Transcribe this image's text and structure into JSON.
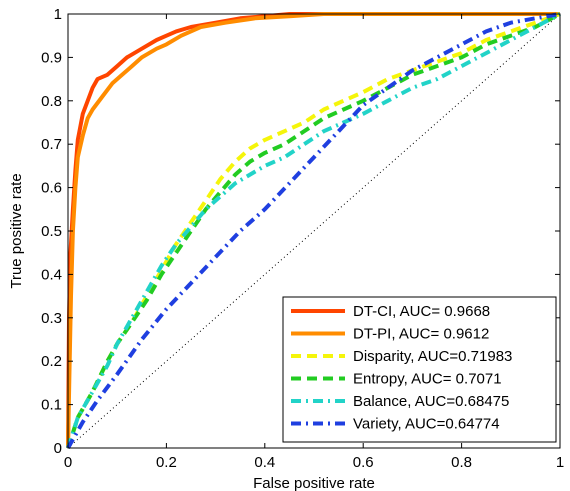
{
  "chart_data": {
    "type": "line",
    "title": "",
    "xlabel": "False positive rate",
    "ylabel": "True positive rate",
    "xlim": [
      0,
      1
    ],
    "ylim": [
      0,
      1
    ],
    "xticks": [
      "0",
      "0.2",
      "0.4",
      "0.6",
      "0.8",
      "1"
    ],
    "yticks": [
      "0",
      "0.1",
      "0.2",
      "0.3",
      "0.4",
      "0.5",
      "0.6",
      "0.7",
      "0.8",
      "0.9",
      "1"
    ],
    "xtick_values": [
      0,
      0.2,
      0.4,
      0.6,
      0.8,
      1
    ],
    "ytick_values": [
      0,
      0.1,
      0.2,
      0.3,
      0.4,
      0.5,
      0.6,
      0.7,
      0.8,
      0.9,
      1
    ],
    "grid": false,
    "legend_position": "bottom-right",
    "diagonal_reference": true,
    "series": [
      {
        "name": "DT-CI, AUC= 0.9668",
        "color": "#ff4500",
        "style": "solid",
        "x": [
          0,
          0.002,
          0.005,
          0.01,
          0.015,
          0.02,
          0.03,
          0.04,
          0.05,
          0.06,
          0.08,
          0.1,
          0.12,
          0.15,
          0.18,
          0.2,
          0.22,
          0.25,
          0.3,
          0.35,
          0.4,
          0.45,
          0.5,
          1
        ],
        "y": [
          0,
          0.3,
          0.45,
          0.55,
          0.64,
          0.71,
          0.77,
          0.8,
          0.83,
          0.85,
          0.86,
          0.88,
          0.9,
          0.92,
          0.94,
          0.95,
          0.96,
          0.97,
          0.98,
          0.99,
          0.995,
          1,
          1,
          1
        ]
      },
      {
        "name": "DT-PI, AUC= 0.9612",
        "color": "#ff8c00",
        "style": "solid",
        "x": [
          0,
          0.003,
          0.006,
          0.01,
          0.015,
          0.02,
          0.03,
          0.04,
          0.05,
          0.07,
          0.09,
          0.11,
          0.13,
          0.15,
          0.18,
          0.2,
          0.23,
          0.27,
          0.32,
          0.38,
          0.45,
          0.52,
          1
        ],
        "y": [
          0,
          0.18,
          0.35,
          0.5,
          0.6,
          0.67,
          0.72,
          0.76,
          0.78,
          0.81,
          0.84,
          0.86,
          0.88,
          0.9,
          0.92,
          0.93,
          0.95,
          0.97,
          0.98,
          0.99,
          0.995,
          1,
          1
        ]
      },
      {
        "name": "Disparity, AUC=0.71983",
        "color": "#f5f50a",
        "style": "dashed",
        "x": [
          0,
          0.02,
          0.05,
          0.08,
          0.1,
          0.13,
          0.16,
          0.19,
          0.22,
          0.25,
          0.28,
          0.31,
          0.34,
          0.37,
          0.4,
          0.44,
          0.48,
          0.52,
          0.56,
          0.6,
          0.65,
          0.7,
          0.75,
          0.8,
          0.85,
          0.9,
          0.95,
          1
        ],
        "y": [
          0,
          0.07,
          0.13,
          0.2,
          0.24,
          0.29,
          0.35,
          0.41,
          0.47,
          0.52,
          0.57,
          0.62,
          0.66,
          0.69,
          0.71,
          0.73,
          0.75,
          0.78,
          0.8,
          0.82,
          0.85,
          0.87,
          0.89,
          0.91,
          0.94,
          0.96,
          0.98,
          1
        ]
      },
      {
        "name": "Entropy, AUC= 0.7071",
        "color": "#22cc22",
        "style": "dashed",
        "x": [
          0,
          0.02,
          0.05,
          0.08,
          0.1,
          0.13,
          0.16,
          0.19,
          0.22,
          0.25,
          0.28,
          0.31,
          0.34,
          0.37,
          0.4,
          0.44,
          0.48,
          0.52,
          0.56,
          0.6,
          0.65,
          0.7,
          0.75,
          0.8,
          0.85,
          0.9,
          0.95,
          1
        ],
        "y": [
          0,
          0.07,
          0.13,
          0.2,
          0.24,
          0.29,
          0.34,
          0.4,
          0.45,
          0.5,
          0.55,
          0.59,
          0.63,
          0.66,
          0.68,
          0.7,
          0.73,
          0.76,
          0.78,
          0.8,
          0.83,
          0.86,
          0.88,
          0.9,
          0.93,
          0.95,
          0.97,
          1
        ]
      },
      {
        "name": "Balance, AUC=0.68475",
        "color": "#22d3c8",
        "style": "dashdot",
        "x": [
          0,
          0.02,
          0.05,
          0.08,
          0.1,
          0.13,
          0.16,
          0.19,
          0.22,
          0.25,
          0.28,
          0.31,
          0.34,
          0.37,
          0.4,
          0.44,
          0.48,
          0.52,
          0.56,
          0.6,
          0.65,
          0.7,
          0.75,
          0.8,
          0.85,
          0.9,
          0.95,
          1
        ],
        "y": [
          0,
          0.07,
          0.13,
          0.19,
          0.24,
          0.3,
          0.36,
          0.42,
          0.47,
          0.51,
          0.55,
          0.58,
          0.61,
          0.63,
          0.65,
          0.67,
          0.7,
          0.73,
          0.75,
          0.77,
          0.8,
          0.83,
          0.85,
          0.88,
          0.91,
          0.94,
          0.97,
          1
        ]
      },
      {
        "name": "Variety, AUC=0.64774",
        "color": "#1f3fe0",
        "style": "dashdot",
        "x": [
          0,
          0.03,
          0.06,
          0.1,
          0.15,
          0.2,
          0.25,
          0.3,
          0.35,
          0.4,
          0.45,
          0.5,
          0.55,
          0.6,
          0.65,
          0.7,
          0.75,
          0.8,
          0.85,
          0.9,
          0.95,
          1
        ],
        "y": [
          0,
          0.06,
          0.11,
          0.17,
          0.25,
          0.32,
          0.38,
          0.44,
          0.5,
          0.55,
          0.61,
          0.67,
          0.73,
          0.79,
          0.83,
          0.87,
          0.9,
          0.93,
          0.96,
          0.98,
          0.99,
          1
        ]
      }
    ]
  }
}
